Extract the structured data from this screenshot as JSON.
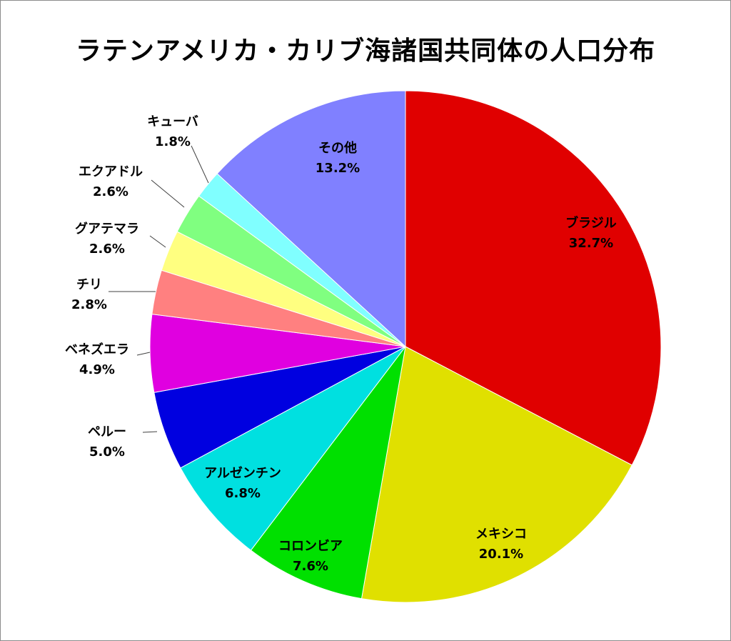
{
  "chart_data": {
    "type": "pie",
    "title": "ラテンアメリカ・カリブ海諸国共同体の人口分布",
    "slices": [
      {
        "name": "ブラジル",
        "value": 32.7,
        "label": "32.7%",
        "color": "#e00000"
      },
      {
        "name": "メキシコ",
        "value": 20.1,
        "label": "20.1%",
        "color": "#e0e000"
      },
      {
        "name": "コロンビア",
        "value": 7.6,
        "label": "7.6%",
        "color": "#00e000"
      },
      {
        "name": "アルゼンチン",
        "value": 6.8,
        "label": "6.8%",
        "color": "#00e0e0"
      },
      {
        "name": "ペルー",
        "value": 5.0,
        "label": "5.0%",
        "color": "#0000e0"
      },
      {
        "name": "ベネズエラ",
        "value": 4.9,
        "label": "4.9%",
        "color": "#e000e0"
      },
      {
        "name": "チリ",
        "value": 2.8,
        "label": "2.8%",
        "color": "#ff8080"
      },
      {
        "name": "グアテマラ",
        "value": 2.6,
        "label": "2.6%",
        "color": "#ffff80"
      },
      {
        "name": "エクアドル",
        "value": 2.6,
        "label": "2.6%",
        "color": "#80ff80"
      },
      {
        "name": "キューバ",
        "value": 1.8,
        "label": "1.8%",
        "color": "#80ffff"
      },
      {
        "name": "その他",
        "value": 13.2,
        "label": "13.2%",
        "color": "#8080ff"
      }
    ]
  }
}
